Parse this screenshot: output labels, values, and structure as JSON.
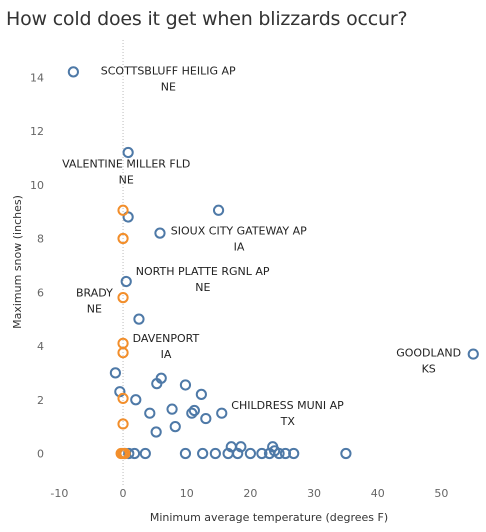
{
  "chart_data": {
    "type": "scatter",
    "title": "How cold does it get when blizzards occur?",
    "xlabel": "Minimum average temperature (degrees F)",
    "ylabel": "Maximum snow (inches)",
    "xlim": [
      -11,
      57
    ],
    "ylim": [
      -0.8,
      15.2
    ],
    "xticks": [
      -10,
      0,
      10,
      20,
      30,
      40,
      50
    ],
    "yticks": [
      0,
      2,
      4,
      6,
      8,
      10,
      12,
      14
    ],
    "grid": false,
    "reference_line_x": 0,
    "colors": {
      "blue": "#4e79a7",
      "orange": "#f28e2b"
    },
    "series": [
      {
        "color": "blue",
        "points": [
          [
            -7.8,
            14.2
          ],
          [
            0.8,
            11.2
          ],
          [
            0.8,
            8.8
          ],
          [
            15,
            9.05
          ],
          [
            5.8,
            8.2
          ],
          [
            0.5,
            6.4
          ],
          [
            2.5,
            5.0
          ],
          [
            55,
            3.7
          ],
          [
            -1.2,
            3.0
          ],
          [
            6,
            2.8
          ],
          [
            5.3,
            2.6
          ],
          [
            9.8,
            2.55
          ],
          [
            -0.5,
            2.3
          ],
          [
            12.3,
            2.2
          ],
          [
            2,
            2.0
          ],
          [
            7.7,
            1.65
          ],
          [
            11.2,
            1.6
          ],
          [
            10.8,
            1.5
          ],
          [
            15.5,
            1.5
          ],
          [
            4.2,
            1.5
          ],
          [
            13,
            1.3
          ],
          [
            8.2,
            1.0
          ],
          [
            5.2,
            0.8
          ],
          [
            17,
            0.25
          ],
          [
            18.5,
            0.25
          ],
          [
            23.5,
            0.25
          ],
          [
            23.8,
            0.1
          ],
          [
            0.3,
            0
          ],
          [
            0.9,
            0
          ],
          [
            1.8,
            0
          ],
          [
            3.5,
            0
          ],
          [
            9.8,
            0
          ],
          [
            12.5,
            0
          ],
          [
            14.5,
            0
          ],
          [
            16.5,
            0
          ],
          [
            18,
            0
          ],
          [
            20,
            0
          ],
          [
            21.8,
            0
          ],
          [
            23,
            0
          ],
          [
            24.5,
            0
          ],
          [
            25.5,
            0
          ],
          [
            26.8,
            0
          ],
          [
            35,
            0
          ]
        ]
      },
      {
        "color": "orange",
        "points": [
          [
            0,
            9.05
          ],
          [
            0,
            8.0
          ],
          [
            0,
            5.8
          ],
          [
            0,
            4.1
          ],
          [
            0,
            3.75
          ],
          [
            0,
            2.05
          ],
          [
            0,
            1.1
          ],
          [
            0,
            0
          ],
          [
            -0.3,
            0
          ],
          [
            0.3,
            0
          ]
        ]
      }
    ],
    "annotations": [
      {
        "lines": [
          "SCOTTSBLUFF HEILIG AP",
          "NE"
        ],
        "x": -3.5,
        "y": 14.25,
        "align": "start"
      },
      {
        "lines": [
          "VALENTINE MILLER FLD",
          "NE"
        ],
        "x": 0.5,
        "y": 10.8,
        "align": "middle"
      },
      {
        "lines": [
          "SIOUX CITY GATEWAY AP",
          "IA"
        ],
        "x": 7.5,
        "y": 8.3,
        "align": "start"
      },
      {
        "lines": [
          "NORTH PLATTE RGNL AP",
          "NE"
        ],
        "x": 2,
        "y": 6.8,
        "align": "start"
      },
      {
        "lines": [
          "BRADY",
          "NE"
        ],
        "x": -4.5,
        "y": 6.0,
        "align": "middle"
      },
      {
        "lines": [
          "DAVENPORT",
          "IA"
        ],
        "x": 1.5,
        "y": 4.3,
        "align": "start"
      },
      {
        "lines": [
          "GOODLAND",
          "KS"
        ],
        "x": 48,
        "y": 3.75,
        "align": "middle"
      },
      {
        "lines": [
          "CHILDRESS MUNI AP",
          "TX"
        ],
        "x": 17,
        "y": 1.8,
        "align": "start"
      }
    ]
  }
}
